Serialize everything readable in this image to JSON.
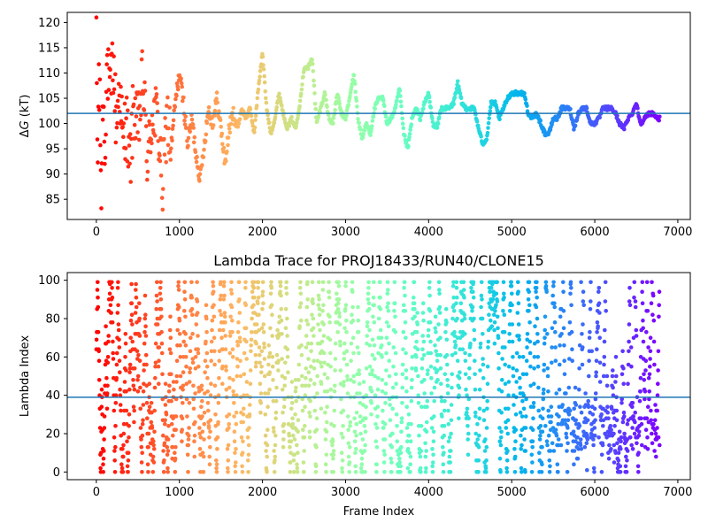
{
  "chart_data": [
    {
      "type": "scatter",
      "title": "",
      "xlabel": "",
      "ylabel_prefix": "Δ",
      "ylabel_italic": "G",
      "ylabel_suffix": " (kT)",
      "xlim": [
        -350,
        7150
      ],
      "ylim": [
        81,
        122
      ],
      "xticks": [
        0,
        1000,
        2000,
        3000,
        4000,
        5000,
        6000,
        7000
      ],
      "yticks": [
        85,
        90,
        95,
        100,
        105,
        110,
        115,
        120
      ],
      "hline": 102,
      "hline_color": "#1f77b4",
      "colormap": "rainbow (reversed: red at start, violet at end)",
      "x_max": 6780,
      "points_profile": [
        [
          0,
          120
        ],
        [
          15,
          90
        ],
        [
          30,
          110
        ],
        [
          45,
          100
        ],
        [
          60,
          86
        ],
        [
          80,
          108
        ],
        [
          100,
          95
        ],
        [
          130,
          112
        ],
        [
          160,
          104
        ],
        [
          200,
          113
        ],
        [
          240,
          100
        ],
        [
          280,
          108
        ],
        [
          320,
          95
        ],
        [
          360,
          102
        ],
        [
          400,
          90
        ],
        [
          450,
          104
        ],
        [
          500,
          98
        ],
        [
          560,
          109
        ],
        [
          620,
          92
        ],
        [
          680,
          103
        ],
        [
          740,
          100
        ],
        [
          800,
          87
        ],
        [
          850,
          102
        ],
        [
          900,
          95
        ],
        [
          950,
          104
        ],
        [
          1000,
          110
        ],
        [
          1050,
          104
        ],
        [
          1100,
          96
        ],
        [
          1150,
          101
        ],
        [
          1200,
          94
        ],
        [
          1250,
          89
        ],
        [
          1300,
          96
        ],
        [
          1350,
          103
        ],
        [
          1400,
          100
        ],
        [
          1450,
          105
        ],
        [
          1500,
          99
        ],
        [
          1550,
          92
        ],
        [
          1600,
          99
        ],
        [
          1650,
          102
        ],
        [
          1700,
          99
        ],
        [
          1750,
          103
        ],
        [
          1800,
          101
        ],
        [
          1850,
          103
        ],
        [
          1900,
          98
        ],
        [
          1950,
          107
        ],
        [
          2000,
          114
        ],
        [
          2050,
          103
        ],
        [
          2100,
          98
        ],
        [
          2150,
          101
        ],
        [
          2200,
          106
        ],
        [
          2250,
          102
        ],
        [
          2300,
          99
        ],
        [
          2350,
          101
        ],
        [
          2400,
          99
        ],
        [
          2450,
          104
        ],
        [
          2500,
          111
        ],
        [
          2550,
          111
        ],
        [
          2600,
          113
        ],
        [
          2650,
          100
        ],
        [
          2700,
          103
        ],
        [
          2750,
          106
        ],
        [
          2800,
          101
        ],
        [
          2850,
          100
        ],
        [
          2900,
          106
        ],
        [
          2950,
          102
        ],
        [
          3000,
          101
        ],
        [
          3050,
          105
        ],
        [
          3100,
          110
        ],
        [
          3150,
          101
        ],
        [
          3200,
          97
        ],
        [
          3250,
          100
        ],
        [
          3300,
          98
        ],
        [
          3350,
          103
        ],
        [
          3400,
          105
        ],
        [
          3450,
          105
        ],
        [
          3500,
          100
        ],
        [
          3550,
          101
        ],
        [
          3600,
          103
        ],
        [
          3650,
          107
        ],
        [
          3700,
          98
        ],
        [
          3750,
          95
        ],
        [
          3800,
          101
        ],
        [
          3850,
          103
        ],
        [
          3900,
          101
        ],
        [
          3950,
          104
        ],
        [
          4000,
          106
        ],
        [
          4050,
          100
        ],
        [
          4100,
          99
        ],
        [
          4150,
          103
        ],
        [
          4200,
          103
        ],
        [
          4250,
          103
        ],
        [
          4300,
          104
        ],
        [
          4350,
          108
        ],
        [
          4400,
          104
        ],
        [
          4450,
          103
        ],
        [
          4500,
          103
        ],
        [
          4550,
          103
        ],
        [
          4600,
          99
        ],
        [
          4650,
          96
        ],
        [
          4700,
          97
        ],
        [
          4750,
          104
        ],
        [
          4800,
          104
        ],
        [
          4850,
          101
        ],
        [
          4900,
          103
        ],
        [
          4950,
          105
        ],
        [
          5000,
          106
        ],
        [
          5050,
          106
        ],
        [
          5100,
          106
        ],
        [
          5150,
          106
        ],
        [
          5200,
          102
        ],
        [
          5250,
          101
        ],
        [
          5300,
          102
        ],
        [
          5350,
          100
        ],
        [
          5400,
          98
        ],
        [
          5450,
          98
        ],
        [
          5500,
          101
        ],
        [
          5550,
          101
        ],
        [
          5600,
          103
        ],
        [
          5650,
          103
        ],
        [
          5700,
          103
        ],
        [
          5750,
          99
        ],
        [
          5800,
          102
        ],
        [
          5850,
          103
        ],
        [
          5900,
          103
        ],
        [
          5950,
          100
        ],
        [
          6000,
          100
        ],
        [
          6050,
          101
        ],
        [
          6100,
          103
        ],
        [
          6150,
          103
        ],
        [
          6200,
          103
        ],
        [
          6250,
          102
        ],
        [
          6300,
          100
        ],
        [
          6350,
          99
        ],
        [
          6400,
          101
        ],
        [
          6450,
          102
        ],
        [
          6500,
          104
        ],
        [
          6550,
          100
        ],
        [
          6600,
          101
        ],
        [
          6650,
          102
        ],
        [
          6700,
          102
        ],
        [
          6750,
          101
        ],
        [
          6780,
          101
        ]
      ]
    },
    {
      "type": "scatter",
      "title": "Lambda Trace for PROJ18433/RUN40/CLONE15",
      "xlabel": "Frame Index",
      "ylabel": "Lambda Index",
      "xlim": [
        -350,
        7150
      ],
      "ylim": [
        -4,
        104
      ],
      "xticks": [
        0,
        1000,
        2000,
        3000,
        4000,
        5000,
        6000,
        7000
      ],
      "yticks": [
        0,
        20,
        40,
        60,
        80,
        100
      ],
      "hline": 39,
      "hline_color": "#1f77b4",
      "colormap": "rainbow (reversed: red at start, violet at end)",
      "x_max": 6780,
      "value_range": [
        0,
        99
      ]
    }
  ]
}
